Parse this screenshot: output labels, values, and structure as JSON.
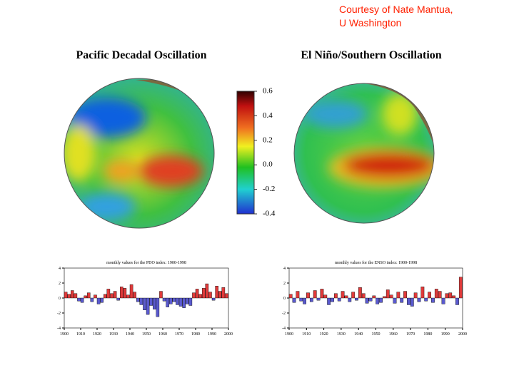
{
  "courtesy": [
    "Courtesy of Nate Mantua,",
    "U Washington"
  ],
  "chart_data": [
    {
      "type": "map",
      "title": "Pacific Decadal Oscillation"
    },
    {
      "type": "map",
      "title": "El Niño/Southern Oscillation"
    },
    {
      "type": "colorbar",
      "ylim": [
        -0.4,
        0.6
      ],
      "yticks": [
        0.6,
        0.4,
        0.2,
        {
          "value": 0.0,
          "label": "0.0"
        },
        -0.2,
        -0.4
      ]
    },
    {
      "type": "bar",
      "title": "monthly values for the PDO index: 1900-1998",
      "colors": [
        "#e03a3a",
        "#5a5ad0"
      ],
      "x": [
        1900,
        1902,
        1904,
        1906,
        1908,
        1910,
        1912,
        1914,
        1916,
        1918,
        1920,
        1922,
        1924,
        1926,
        1928,
        1930,
        1932,
        1934,
        1936,
        1938,
        1940,
        1942,
        1944,
        1946,
        1948,
        1950,
        1952,
        1954,
        1956,
        1958,
        1960,
        1962,
        1964,
        1966,
        1968,
        1970,
        1972,
        1974,
        1976,
        1978,
        1980,
        1982,
        1984,
        1986,
        1988,
        1990,
        1992,
        1994,
        1996,
        1998
      ],
      "values": [
        0.8,
        0.5,
        1.0,
        0.6,
        -0.4,
        -0.6,
        0.3,
        0.7,
        -0.5,
        0.4,
        -0.8,
        -0.6,
        0.5,
        1.2,
        0.6,
        0.9,
        -0.3,
        1.5,
        1.3,
        0.4,
        1.8,
        0.8,
        -0.5,
        -0.9,
        -1.6,
        -2.2,
        -1.0,
        -1.5,
        -2.5,
        0.9,
        -0.4,
        -1.2,
        -0.8,
        -0.5,
        -0.9,
        -1.1,
        -1.3,
        -0.8,
        -1.0,
        0.7,
        1.2,
        0.5,
        1.3,
        1.9,
        0.8,
        -0.3,
        1.6,
        0.9,
        1.4,
        0.6
      ],
      "xlim": [
        1900,
        2000
      ],
      "xticks": [
        1900,
        1910,
        1920,
        1930,
        1940,
        1950,
        1960,
        1970,
        1980,
        1990,
        2000
      ],
      "ylim": [
        -4,
        4
      ],
      "yticks": [
        4,
        2,
        0,
        -2,
        -4
      ]
    },
    {
      "type": "bar",
      "title": "monthly values for the ENSO index: 1900-1998",
      "colors": [
        "#e03a3a",
        "#5a5ad0"
      ],
      "x": [
        1900,
        1902,
        1904,
        1906,
        1908,
        1910,
        1912,
        1914,
        1916,
        1918,
        1920,
        1922,
        1924,
        1926,
        1928,
        1930,
        1932,
        1934,
        1936,
        1938,
        1940,
        1942,
        1944,
        1946,
        1948,
        1950,
        1952,
        1954,
        1956,
        1958,
        1960,
        1962,
        1964,
        1966,
        1968,
        1970,
        1972,
        1974,
        1976,
        1978,
        1980,
        1982,
        1984,
        1986,
        1988,
        1990,
        1992,
        1994,
        1996,
        1998
      ],
      "values": [
        0.5,
        -0.6,
        0.9,
        -0.4,
        -0.8,
        0.7,
        -0.5,
        1.0,
        -0.3,
        1.2,
        0.4,
        -0.9,
        -0.5,
        0.6,
        -0.4,
        0.9,
        0.3,
        -0.5,
        0.8,
        -0.3,
        1.4,
        0.6,
        -0.7,
        -0.4,
        0.3,
        -0.8,
        -0.6,
        0.2,
        1.1,
        0.4,
        -0.7,
        0.8,
        -0.6,
        0.9,
        -0.9,
        -1.1,
        0.7,
        -0.5,
        1.5,
        -0.4,
        0.8,
        -0.6,
        1.2,
        0.9,
        -0.8,
        0.6,
        0.7,
        0.3,
        -0.9,
        2.8
      ],
      "xlim": [
        1900,
        2000
      ],
      "xticks": [
        1900,
        1910,
        1920,
        1930,
        1940,
        1950,
        1960,
        1970,
        1980,
        1990,
        2000
      ],
      "ylim": [
        -4,
        4
      ],
      "yticks": [
        4,
        2,
        0,
        -2,
        -4
      ]
    }
  ]
}
